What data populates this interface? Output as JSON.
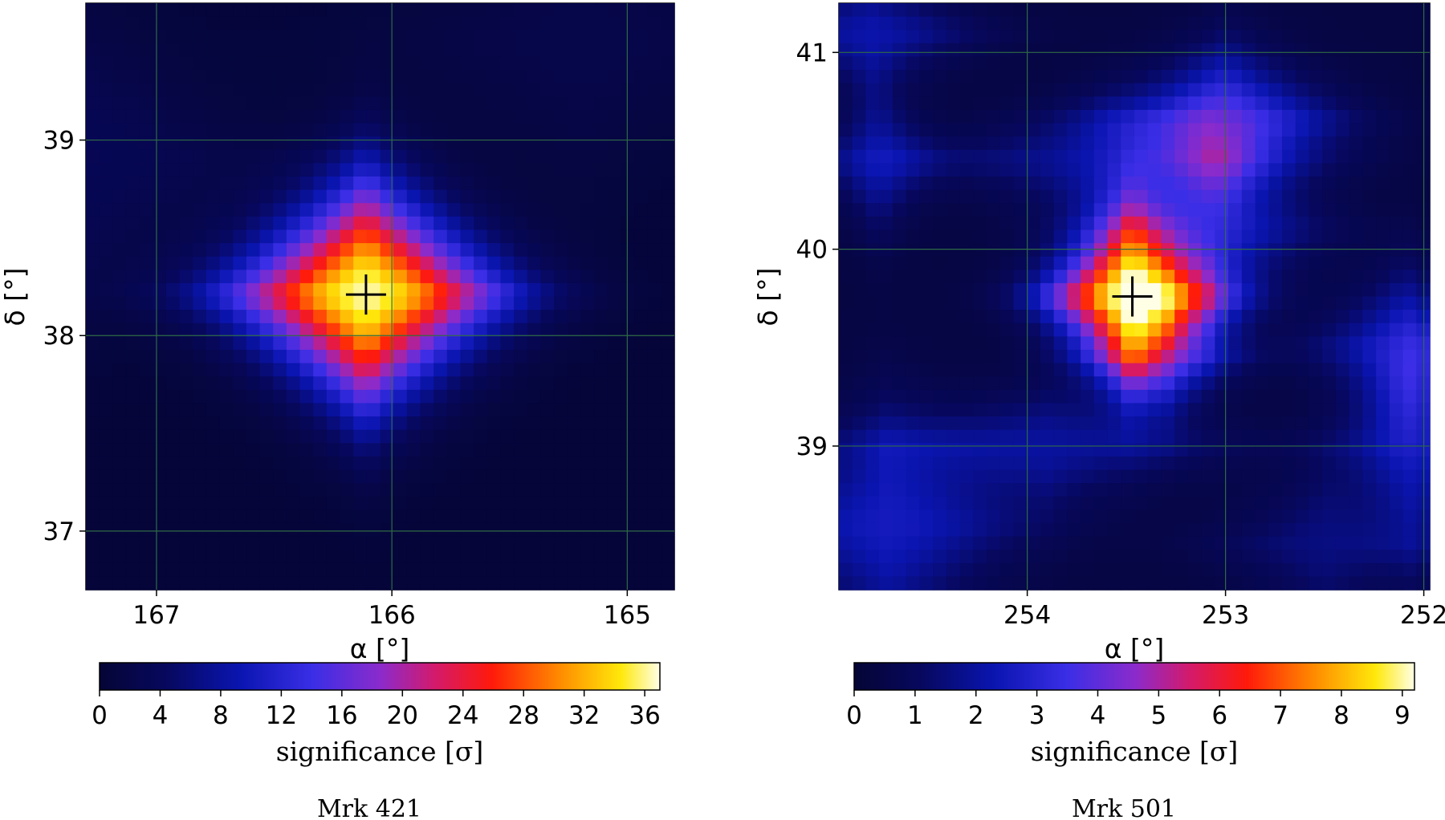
{
  "chart_data": [
    {
      "type": "heatmap",
      "caption": "Mrk 421",
      "xlabel": "α [°]",
      "ylabel": "δ [°]",
      "xlim": [
        167.3,
        164.8
      ],
      "ylim": [
        36.7,
        39.7
      ],
      "xticks": [
        167,
        166,
        165
      ],
      "yticks": [
        37,
        38,
        39
      ],
      "grid": true,
      "source_marker": {
        "ra": 166.11,
        "dec": 38.21,
        "symbol": "+"
      },
      "peak_significance": 37,
      "blobs": [
        {
          "ra": 166.11,
          "dec": 38.21,
          "sigma_ra": 0.3,
          "sigma_dec": 0.3,
          "amplitude": 36.0
        },
        {
          "ra": 167.3,
          "dec": 38.9,
          "sigma_ra": 0.4,
          "sigma_dec": 0.4,
          "amplitude": 3.0
        },
        {
          "ra": 165.2,
          "dec": 39.5,
          "sigma_ra": 0.5,
          "sigma_dec": 0.4,
          "amplitude": 2.0
        }
      ],
      "colorbar": {
        "label": "significance [σ]",
        "min": 0,
        "max": 37,
        "ticks": [
          0,
          4,
          8,
          12,
          16,
          20,
          24,
          28,
          32,
          36
        ]
      }
    },
    {
      "type": "heatmap",
      "caption": "Mrk 501",
      "xlabel": "α [°]",
      "ylabel": "δ [°]",
      "xlim": [
        254.95,
        251.97
      ],
      "ylim": [
        38.27,
        41.25
      ],
      "xticks": [
        254,
        253,
        252
      ],
      "yticks": [
        39,
        40,
        41
      ],
      "grid": true,
      "source_marker": {
        "ra": 253.47,
        "dec": 39.76,
        "symbol": "+"
      },
      "peak_significance": 9.2,
      "blobs": [
        {
          "ra": 253.47,
          "dec": 39.76,
          "sigma_ra": 0.22,
          "sigma_dec": 0.22,
          "amplitude": 8.8
        },
        {
          "ra": 253.0,
          "dec": 40.65,
          "sigma_ra": 0.3,
          "sigma_dec": 0.2,
          "amplitude": 3.2
        },
        {
          "ra": 253.1,
          "dec": 40.1,
          "sigma_ra": 0.3,
          "sigma_dec": 0.25,
          "amplitude": 2.2
        },
        {
          "ra": 253.6,
          "dec": 40.45,
          "sigma_ra": 0.5,
          "sigma_dec": 0.15,
          "amplitude": 1.6
        },
        {
          "ra": 254.7,
          "dec": 38.6,
          "sigma_ra": 0.35,
          "sigma_dec": 0.3,
          "amplitude": 2.2
        },
        {
          "ra": 252.1,
          "dec": 39.5,
          "sigma_ra": 0.25,
          "sigma_dec": 0.2,
          "amplitude": 2.2
        },
        {
          "ra": 252.05,
          "dec": 39.0,
          "sigma_ra": 0.2,
          "sigma_dec": 0.3,
          "amplitude": 2.0
        },
        {
          "ra": 254.75,
          "dec": 40.45,
          "sigma_ra": 0.15,
          "sigma_dec": 0.2,
          "amplitude": 1.8
        },
        {
          "ra": 253.9,
          "dec": 39.0,
          "sigma_ra": 0.5,
          "sigma_dec": 0.15,
          "amplitude": 1.6
        },
        {
          "ra": 254.8,
          "dec": 41.1,
          "sigma_ra": 0.3,
          "sigma_dec": 0.15,
          "amplitude": 1.8
        },
        {
          "ra": 253.3,
          "dec": 39.45,
          "sigma_ra": 0.2,
          "sigma_dec": 0.15,
          "amplitude": 2.2
        },
        {
          "ra": 252.5,
          "dec": 38.5,
          "sigma_ra": 0.3,
          "sigma_dec": 0.2,
          "amplitude": 1.2
        }
      ],
      "colorbar": {
        "label": "significance [σ]",
        "min": 0,
        "max": 9.2,
        "ticks": [
          0,
          1,
          2,
          3,
          4,
          5,
          6,
          7,
          8,
          9
        ]
      }
    }
  ],
  "colormap_name": "gnuplot2-like",
  "colormap_stops": [
    {
      "v": 0.0,
      "color": "#050536"
    },
    {
      "v": 0.12,
      "color": "#07085e"
    },
    {
      "v": 0.25,
      "color": "#0a15b0"
    },
    {
      "v": 0.38,
      "color": "#3a2ee6"
    },
    {
      "v": 0.5,
      "color": "#8a2bcc"
    },
    {
      "v": 0.6,
      "color": "#d41a6a"
    },
    {
      "v": 0.7,
      "color": "#ff1a0a"
    },
    {
      "v": 0.82,
      "color": "#ff8a00"
    },
    {
      "v": 0.93,
      "color": "#ffe80a"
    },
    {
      "v": 1.0,
      "color": "#ffffe6"
    }
  ],
  "grid_color": "#2f6b45",
  "marker_color": "#000000"
}
